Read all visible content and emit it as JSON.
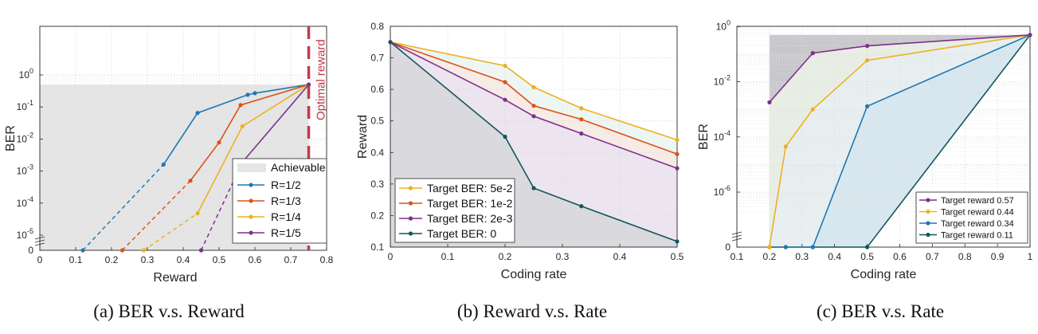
{
  "chart_data": [
    {
      "type": "line",
      "caption": "(a) BER v.s. Reward",
      "xlabel": "Reward",
      "ylabel": "BER",
      "xlim": [
        0,
        0.8
      ],
      "ylim": [
        0,
        1
      ],
      "y_scale": "log",
      "x_ticks": [
        "0",
        "0.1",
        "0.2",
        "0.3",
        "0.4",
        "0.5",
        "0.6",
        "0.7",
        "0.8"
      ],
      "y_ticks": [
        "0",
        "10-5",
        "10-4",
        "10-3",
        "10-2",
        "10-1",
        "100"
      ],
      "grid": true,
      "legend_position": "bottom-right",
      "achievable_label": "Achievable",
      "achievable_region": {
        "x": [
          0,
          0.75
        ],
        "y_max": 0.5
      },
      "annotation": {
        "text": "Optimal reward",
        "x": 0.75
      },
      "series": [
        {
          "name": "R=1/2",
          "color": "#1f77b4",
          "dashed": [
            [
              0.12,
              0
            ],
            [
              0.345,
              0.0016
            ]
          ],
          "solid": [
            [
              0.345,
              0.0016
            ],
            [
              0.44,
              0.065
            ],
            [
              0.58,
              0.24
            ],
            [
              0.6,
              0.27
            ],
            [
              0.75,
              0.5
            ]
          ]
        },
        {
          "name": "R=1/3",
          "color": "#d95319",
          "dashed": [
            [
              0.23,
              0
            ],
            [
              0.42,
              0.0005
            ]
          ],
          "solid": [
            [
              0.42,
              0.0005
            ],
            [
              0.5,
              0.0078
            ],
            [
              0.56,
              0.115
            ],
            [
              0.75,
              0.5
            ]
          ]
        },
        {
          "name": "R=1/4",
          "color": "#edb120",
          "dashed": [
            [
              0.29,
              0
            ],
            [
              0.44,
              4.8e-05
            ]
          ],
          "solid": [
            [
              0.44,
              4.8e-05
            ],
            [
              0.565,
              0.025
            ],
            [
              0.75,
              0.5
            ]
          ]
        },
        {
          "name": "R=1/5",
          "color": "#7e2f8e",
          "dashed": [
            [
              0.45,
              0
            ],
            [
              0.565,
              0.0019
            ]
          ],
          "solid": [
            [
              0.565,
              0.0019
            ],
            [
              0.75,
              0.5
            ]
          ]
        }
      ]
    },
    {
      "type": "area",
      "caption": "(b) Reward v.s. Rate",
      "xlabel": "Coding rate",
      "ylabel": "Reward",
      "xlim": [
        0,
        0.5
      ],
      "ylim": [
        0.1,
        0.8
      ],
      "x_ticks": [
        "0",
        "0.1",
        "0.2",
        "0.3",
        "0.4",
        "0.5"
      ],
      "y_ticks": [
        "0.1",
        "0.2",
        "0.3",
        "0.4",
        "0.5",
        "0.6",
        "0.7",
        "0.8"
      ],
      "grid": true,
      "legend_position": "bottom-left",
      "series": [
        {
          "name": "Target BER: 5e-2",
          "color": "#edb120",
          "x": [
            0,
            0.2,
            0.25,
            0.333,
            0.5
          ],
          "y": [
            0.75,
            0.675,
            0.607,
            0.54,
            0.44
          ]
        },
        {
          "name": "Target BER: 1e-2",
          "color": "#d95319",
          "x": [
            0,
            0.2,
            0.25,
            0.333,
            0.5
          ],
          "y": [
            0.75,
            0.623,
            0.548,
            0.505,
            0.395
          ]
        },
        {
          "name": "Target BER: 2e-3",
          "color": "#7e2f8e",
          "x": [
            0,
            0.2,
            0.25,
            0.333,
            0.5
          ],
          "y": [
            0.75,
            0.567,
            0.515,
            0.46,
            0.35
          ]
        },
        {
          "name": "Target BER: 0",
          "color": "#11575b",
          "x": [
            0,
            0.2,
            0.25,
            0.333,
            0.5
          ],
          "y": [
            0.75,
            0.45,
            0.287,
            0.23,
            0.118
          ]
        }
      ]
    },
    {
      "type": "area",
      "caption": "(c) BER v.s. Rate",
      "xlabel": "Coding rate",
      "ylabel": "BER",
      "xlim": [
        0.1,
        1
      ],
      "ylim": [
        0,
        1
      ],
      "y_scale": "log",
      "x_ticks": [
        "0.1",
        "0.2",
        "0.3",
        "0.4",
        "0.5",
        "0.6",
        "0.7",
        "0.8",
        "0.9",
        "1"
      ],
      "y_ticks": [
        "0",
        "10-6",
        "10-4",
        "10-2",
        "100"
      ],
      "grid": true,
      "legend_position": "bottom-right",
      "top_region_y": 0.5,
      "series": [
        {
          "name": "Target reward 0.57",
          "color": "#7e2f8e",
          "x": [
            0.2,
            0.333,
            0.5,
            1
          ],
          "y": [
            0.0018,
            0.11,
            0.2,
            0.5
          ]
        },
        {
          "name": "Target reward 0.44",
          "color": "#edb120",
          "x": [
            0.2,
            0.25,
            0.333,
            0.5,
            1
          ],
          "y": [
            0,
            4.5e-05,
            0.001,
            0.06,
            0.5
          ]
        },
        {
          "name": "Target reward 0.34",
          "color": "#1f77b4",
          "x": [
            0.2,
            0.25,
            0.333,
            0.5,
            1
          ],
          "y": [
            0,
            0,
            0,
            0.0013,
            0.5
          ]
        },
        {
          "name": "Target reward 0.11",
          "color": "#11575b",
          "x": [
            0.2,
            0.25,
            0.333,
            0.5,
            1
          ],
          "y": [
            0,
            0,
            0,
            0,
            0.5
          ]
        }
      ]
    }
  ]
}
